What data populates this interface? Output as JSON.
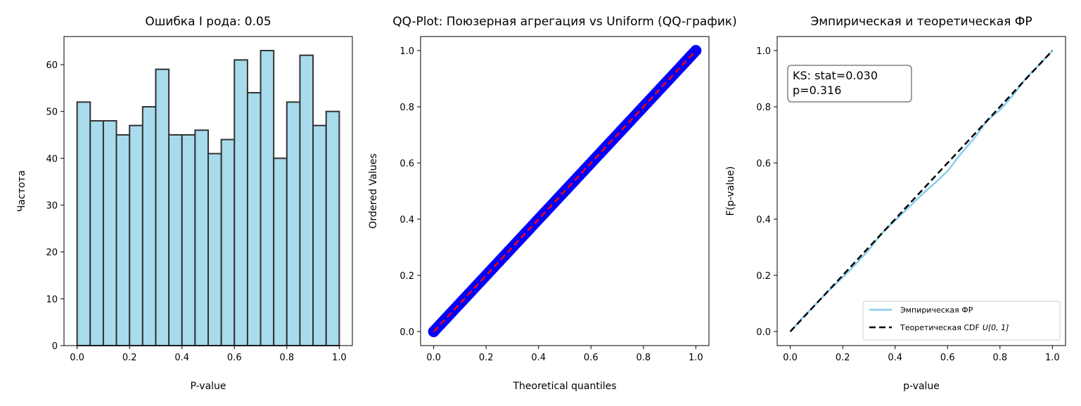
{
  "chart_data": [
    {
      "type": "bar",
      "title": "Ошибка I рода: 0.05",
      "xlabel": "P-value",
      "ylabel": "Частота",
      "xlim": [
        -0.05,
        1.05
      ],
      "ylim": [
        0,
        66
      ],
      "bin_edges": [
        0.0,
        0.05,
        0.1,
        0.15,
        0.2,
        0.25,
        0.3,
        0.35,
        0.4,
        0.45,
        0.5,
        0.55,
        0.6,
        0.65,
        0.7,
        0.75,
        0.8,
        0.85,
        0.9,
        0.95,
        1.0
      ],
      "values": [
        52,
        48,
        48,
        45,
        47,
        51,
        59,
        45,
        45,
        46,
        41,
        44,
        61,
        54,
        63,
        40,
        52,
        62,
        47,
        50
      ],
      "x_ticks": [
        "0.0",
        "0.2",
        "0.4",
        "0.6",
        "0.8",
        "1.0"
      ],
      "y_ticks": [
        "0",
        "10",
        "20",
        "30",
        "40",
        "50",
        "60"
      ],
      "colors": {
        "fill": "#a8dbec",
        "edge": "#333333"
      }
    },
    {
      "type": "scatter",
      "title": "QQ-Plot: Поюзерная агрегация vs Uniform (QQ-график)",
      "xlabel": "Theoretical quantiles",
      "ylabel": "Ordered Values",
      "xlim": [
        -0.05,
        1.05
      ],
      "ylim": [
        -0.05,
        1.05
      ],
      "points": {
        "x_from": 0.0,
        "x_to": 1.0,
        "y_from": 0.0,
        "y_to": 1.0
      },
      "reference_line": {
        "from": [
          0,
          0
        ],
        "to": [
          1,
          1
        ]
      },
      "x_ticks": [
        "0.0",
        "0.2",
        "0.4",
        "0.6",
        "0.8",
        "1.0"
      ],
      "y_ticks": [
        "0.0",
        "0.2",
        "0.4",
        "0.6",
        "0.8",
        "1.0"
      ],
      "colors": {
        "points": "#0000ff",
        "line": "#ff0000"
      }
    },
    {
      "type": "line",
      "title": "Эмпирическая и теоретическая ФР",
      "xlabel": "p-value",
      "ylabel": "F(p-value)",
      "xlim": [
        -0.05,
        1.05
      ],
      "ylim": [
        -0.05,
        1.05
      ],
      "series": [
        {
          "name": "Эмпирическая ФР",
          "x": [
            0.0,
            0.05,
            0.1,
            0.15,
            0.2,
            0.25,
            0.3,
            0.35,
            0.4,
            0.45,
            0.5,
            0.55,
            0.6,
            0.65,
            0.7,
            0.75,
            0.8,
            0.85,
            0.9,
            0.95,
            1.0
          ],
          "y": [
            0.0,
            0.052,
            0.1,
            0.148,
            0.193,
            0.24,
            0.291,
            0.35,
            0.395,
            0.44,
            0.486,
            0.527,
            0.571,
            0.632,
            0.686,
            0.749,
            0.789,
            0.841,
            0.903,
            0.95,
            1.0
          ],
          "color": "#87ceeb"
        },
        {
          "name": "Теоретическая CDF",
          "name_math": "U[0, 1]",
          "x": [
            0.0,
            1.0
          ],
          "y": [
            0.0,
            1.0
          ],
          "color": "#000000"
        }
      ],
      "annotation": {
        "line1": "KS: stat=0.030",
        "line2": "p=0.316"
      },
      "legend_position": "lower right",
      "x_ticks": [
        "0.0",
        "0.2",
        "0.4",
        "0.6",
        "0.8",
        "1.0"
      ],
      "y_ticks": [
        "0.0",
        "0.2",
        "0.4",
        "0.6",
        "0.8",
        "1.0"
      ]
    }
  ]
}
